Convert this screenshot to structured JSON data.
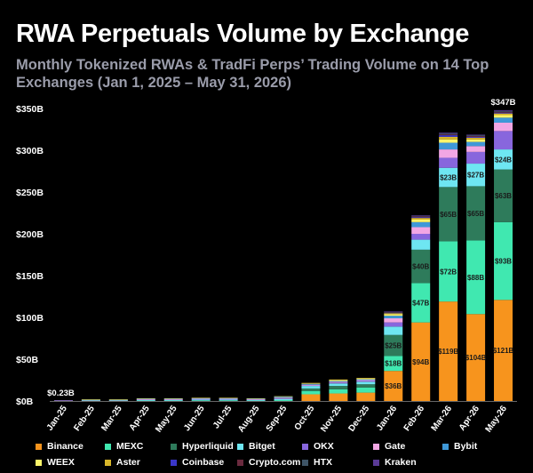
{
  "title": "RWA Perpetuals Volume by Exchange",
  "subtitle": "Monthly Tokenized RWAs & TradFi Perps’ Trading Volume on 14 Top Exchanges (Jan 1, 2025 – May 31, 2026)",
  "chart_data": {
    "type": "bar",
    "stacked": true,
    "title": "RWA Perpetuals Volume by Exchange",
    "subtitle": "Monthly Tokenized RWAs & TradFi Perps’ Trading Volume on 14 Top Exchanges (Jan 1, 2025 – May 31, 2026)",
    "xlabel": "",
    "ylabel": "",
    "ylim": [
      0,
      350
    ],
    "yticks": [
      0,
      50,
      100,
      150,
      200,
      250,
      300,
      350
    ],
    "ytick_labels": [
      "$0B",
      "$50B",
      "$100B",
      "$150B",
      "$200B",
      "$250B",
      "$300B",
      "$350B"
    ],
    "grid": false,
    "legend_position": "bottom",
    "categories": [
      "Jan-25",
      "Feb-25",
      "Mar-25",
      "Apr-25",
      "May-25",
      "Jun-25",
      "Jul-25",
      "Aug-25",
      "Sep-25",
      "Oct-25",
      "Nov-25",
      "Dec-25",
      "Jan-26",
      "Feb-26",
      "Mar-26",
      "Apr-26",
      "May-26"
    ],
    "series": [
      {
        "name": "Binance",
        "color": "#f7941d",
        "values": [
          0,
          0,
          0,
          0,
          0,
          0,
          0,
          0,
          0,
          8,
          9,
          10,
          36,
          94,
          119,
          104,
          121
        ]
      },
      {
        "name": "MEXC",
        "color": "#40e8b0",
        "values": [
          0.1,
          0.3,
          0.3,
          0.5,
          0.5,
          0.8,
          0.8,
          0.5,
          1,
          4,
          5,
          6,
          18,
          47,
          72,
          88,
          93
        ]
      },
      {
        "name": "Hyperliquid",
        "color": "#2e7b5b",
        "values": [
          0,
          0,
          0,
          0,
          0,
          0,
          0,
          0,
          0,
          3,
          4,
          4,
          25,
          40,
          65,
          65,
          63
        ]
      },
      {
        "name": "Bitget",
        "color": "#6ee6f2",
        "values": [
          0.1,
          0.3,
          0.3,
          0.5,
          0.5,
          0.8,
          0.8,
          0.5,
          1.5,
          3,
          3,
          3,
          10,
          12,
          23,
          27,
          24
        ]
      },
      {
        "name": "OKX",
        "color": "#8866dd",
        "values": [
          0,
          0.2,
          0.2,
          0.5,
          0.5,
          0.5,
          0.5,
          0.5,
          0.5,
          0.5,
          1,
          1,
          5,
          7,
          12,
          14,
          22
        ]
      },
      {
        "name": "Gate",
        "color": "#f2a6e4",
        "values": [
          0.02,
          0.2,
          0.2,
          0.5,
          0.5,
          0.5,
          0.5,
          0.5,
          1,
          1,
          1,
          1,
          5,
          8,
          10,
          7,
          10
        ]
      },
      {
        "name": "Bybit",
        "color": "#3f98d8",
        "values": [
          0,
          0.2,
          0.2,
          0.5,
          0.5,
          0.5,
          0.5,
          0.5,
          1,
          1,
          1,
          1,
          3,
          6,
          8,
          5,
          6
        ]
      },
      {
        "name": "WEEX",
        "color": "#fdf56a",
        "values": [
          0,
          0.1,
          0.1,
          0.2,
          0.2,
          0.2,
          0.2,
          0.2,
          0.3,
          0.5,
          1,
          1,
          2,
          3,
          4,
          3,
          3
        ]
      },
      {
        "name": "Aster",
        "color": "#d8b62a",
        "values": [
          0,
          0,
          0,
          0,
          0,
          0,
          0,
          0,
          0,
          0.5,
          0.5,
          0.5,
          1,
          2,
          3,
          2,
          2
        ]
      },
      {
        "name": "Coinbase",
        "color": "#3a36c8",
        "values": [
          0,
          0,
          0,
          0,
          0,
          0,
          0,
          0,
          0,
          0,
          0,
          0,
          0.5,
          1,
          2,
          1,
          1
        ]
      },
      {
        "name": "Crypto.com",
        "color": "#6a2a3e",
        "values": [
          0,
          0,
          0,
          0,
          0,
          0,
          0,
          0,
          0,
          0,
          0,
          0,
          0.5,
          1,
          1,
          1,
          1
        ]
      },
      {
        "name": "HTX",
        "color": "#3e5466",
        "values": [
          0,
          0,
          0,
          0,
          0,
          0,
          0,
          0,
          0,
          0,
          0,
          0,
          0.5,
          0.5,
          1,
          1,
          1
        ]
      },
      {
        "name": "Kraken",
        "color": "#5a3a96",
        "values": [
          0.01,
          0,
          0,
          0,
          0,
          0,
          0,
          0,
          0,
          0,
          0,
          0,
          0.5,
          0.5,
          1,
          0.5,
          1
        ]
      }
    ],
    "segment_labels": {
      "Binance": {
        "Jan-26": "$36B",
        "Feb-26": "$94B",
        "Mar-26": "$119B",
        "Apr-26": "$104B",
        "May-26": "$121B"
      },
      "MEXC": {
        "Jan-26": "$18B",
        "Feb-26": "$47B",
        "Mar-26": "$72B",
        "Apr-26": "$88B",
        "May-26": "$93B"
      },
      "Hyperliquid": {
        "Jan-26": "$25B",
        "Feb-26": "$40B",
        "Mar-26": "$65B",
        "Apr-26": "$65B",
        "May-26": "$63B"
      },
      "Bitget": {
        "Mar-26": "$23B",
        "Apr-26": "$27B",
        "May-26": "$24B"
      }
    },
    "total_labels": {
      "Jan-25": "$0.23B",
      "May-26": "$347B"
    }
  }
}
